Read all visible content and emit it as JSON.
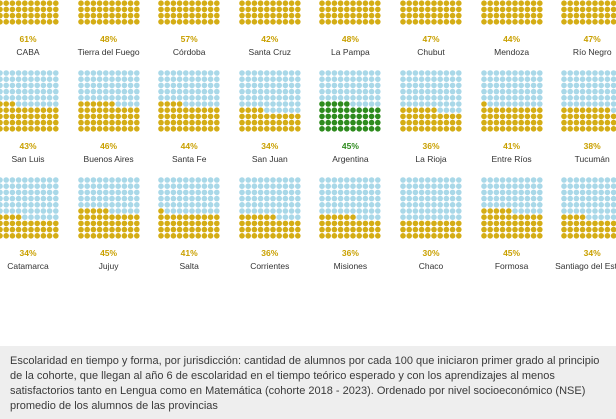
{
  "chart_data": {
    "type": "waffle",
    "units_per_panel": 100,
    "colors": {
      "filled": "#d4ad15",
      "filled_highlight": "#2e8b1e",
      "empty": "#a9d8e8"
    },
    "highlight": "Argentina",
    "panels": [
      {
        "name": "CABA",
        "value": 61,
        "label": "61%"
      },
      {
        "name": "Tierra del Fuego",
        "value": 48,
        "label": "48%"
      },
      {
        "name": "Córdoba",
        "value": 57,
        "label": "57%"
      },
      {
        "name": "Santa Cruz",
        "value": 42,
        "label": "42%"
      },
      {
        "name": "La Pampa",
        "value": 48,
        "label": "48%"
      },
      {
        "name": "Chubut",
        "value": 47,
        "label": "47%"
      },
      {
        "name": "Mendoza",
        "value": 44,
        "label": "44%"
      },
      {
        "name": "Río Negro",
        "value": 47,
        "label": "47%"
      },
      {
        "name": "San Luis",
        "value": 43,
        "label": "43%"
      },
      {
        "name": "Buenos Aires",
        "value": 46,
        "label": "46%"
      },
      {
        "name": "Santa Fe",
        "value": 44,
        "label": "44%"
      },
      {
        "name": "San Juan",
        "value": 34,
        "label": "34%"
      },
      {
        "name": "Argentina",
        "value": 45,
        "label": "45%"
      },
      {
        "name": "La Rioja",
        "value": 36,
        "label": "36%"
      },
      {
        "name": "Entre Ríos",
        "value": 41,
        "label": "41%"
      },
      {
        "name": "Tucumán",
        "value": 38,
        "label": "38%"
      },
      {
        "name": "Catamarca",
        "value": 34,
        "label": "34%"
      },
      {
        "name": "Jujuy",
        "value": 45,
        "label": "45%"
      },
      {
        "name": "Salta",
        "value": 41,
        "label": "41%"
      },
      {
        "name": "Corrientes",
        "value": 36,
        "label": "36%"
      },
      {
        "name": "Misiones",
        "value": 36,
        "label": "36%"
      },
      {
        "name": "Chaco",
        "value": 30,
        "label": "30%"
      },
      {
        "name": "Formosa",
        "value": 45,
        "label": "45%"
      },
      {
        "name": "Santiago del Estero",
        "value": 34,
        "label": "34%"
      }
    ]
  },
  "caption": "Escolaridad en tiempo y forma, por jurisdicción: cantidad de alumnos por cada 100 que iniciaron primer grado al principio de la cohorte, que llegan al año 6 de escolaridad en el tiempo teórico esperado y con los aprendizajes al menos satisfactorios tanto en Lengua como en Matemática (cohorte 2018 - 2023). Ordenado por nivel socioeconómico (NSE) promedio de los alumnos de las provincias"
}
